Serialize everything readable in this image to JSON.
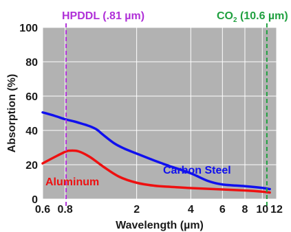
{
  "chart_data": {
    "type": "line",
    "xlabel": "Wavelength (µm)",
    "ylabel": "Absorption (%)",
    "x_scale": "log",
    "xlim": [
      0.6,
      12
    ],
    "ylim": [
      0,
      100
    ],
    "x_ticks": [
      0.6,
      0.8,
      2,
      4,
      6,
      8,
      10,
      12
    ],
    "x_tick_labels": [
      "0.6",
      "0.8",
      "2",
      "4",
      "6",
      "8",
      "10",
      "12"
    ],
    "y_ticks": [
      0,
      20,
      40,
      60,
      80,
      100
    ],
    "y_tick_labels": [
      "0",
      "20",
      "40",
      "60",
      "80",
      "100"
    ],
    "grid": true,
    "background_color": "#b2b2b2",
    "grid_color": "#ffffff",
    "series": [
      {
        "name": "Carbon Steel",
        "color": "#1010ee",
        "x": [
          0.6,
          0.7,
          0.8,
          0.9,
          1.0,
          1.1,
          1.2,
          1.3,
          1.5,
          1.7,
          2.0,
          2.5,
          3,
          4,
          5,
          6,
          8,
          10,
          11
        ],
        "y": [
          50.5,
          48.5,
          46.5,
          45.2,
          43.8,
          42.4,
          40.5,
          37.5,
          32.5,
          29.5,
          26.5,
          22.5,
          19.5,
          15,
          10.5,
          8.5,
          7.5,
          6.5,
          5.8
        ]
      },
      {
        "name": "Aluminum",
        "color": "#ee1010",
        "x": [
          0.6,
          0.7,
          0.8,
          0.85,
          0.95,
          1.1,
          1.3,
          1.6,
          2.0,
          2.5,
          3,
          4,
          6,
          8,
          10,
          11
        ],
        "y": [
          20.8,
          24.5,
          27.5,
          28.2,
          27.8,
          24.5,
          19,
          13,
          9.5,
          7.8,
          7.2,
          6.4,
          5.6,
          5.0,
          4.3,
          3.8
        ]
      }
    ],
    "annotations": [
      {
        "label": "HPDDL (.81 µm)",
        "x": 0.81,
        "color": "#b030d8",
        "style": "dashed"
      },
      {
        "label_main": "CO",
        "label_sub": "2",
        "label_rest": " (10.6 µm)",
        "x": 10.6,
        "color": "#20a040",
        "style": "dashed"
      }
    ]
  }
}
